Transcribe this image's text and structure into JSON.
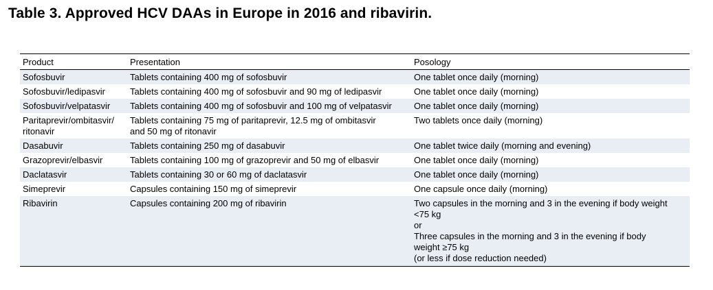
{
  "title": "Table 3. Approved HCV DAAs in Europe in 2016 and ribavirin.",
  "table": {
    "headers": [
      "Product",
      "Presentation",
      "Posology"
    ],
    "rows": [
      {
        "product": [
          "Sofosbuvir"
        ],
        "presentation": [
          "Tablets containing 400 mg of sofosbuvir"
        ],
        "posology": [
          "One tablet once daily (morning)"
        ]
      },
      {
        "product": [
          "Sofosbuvir/ledipasvir"
        ],
        "presentation": [
          "Tablets containing 400 mg of sofosbuvir and 90 mg of ledipasvir"
        ],
        "posology": [
          "One tablet once daily (morning)"
        ]
      },
      {
        "product": [
          "Sofosbuvir/velpatasvir"
        ],
        "presentation": [
          "Tablets containing 400 mg of sofosbuvir and 100 mg of velpatasvir"
        ],
        "posology": [
          "One tablet once daily (morning)"
        ]
      },
      {
        "product": [
          "Paritaprevir/ombitasvir/",
          "ritonavir"
        ],
        "presentation": [
          "Tablets containing 75 mg of paritaprevir, 12.5 mg of ombitasvir",
          "and 50 mg of ritonavir"
        ],
        "posology": [
          "Two tablets once daily (morning)"
        ]
      },
      {
        "product": [
          "Dasabuvir"
        ],
        "presentation": [
          "Tablets containing 250 mg of dasabuvir"
        ],
        "posology": [
          "One tablet twice daily (morning and evening)"
        ]
      },
      {
        "product": [
          "Grazoprevir/elbasvir"
        ],
        "presentation": [
          "Tablets containing 100 mg of grazoprevir and 50 mg of elbasvir"
        ],
        "posology": [
          "One tablet once daily (morning)"
        ]
      },
      {
        "product": [
          "Daclatasvir"
        ],
        "presentation": [
          "Tablets containing 30 or 60 mg of daclatasvir"
        ],
        "posology": [
          "One tablet once daily (morning)"
        ]
      },
      {
        "product": [
          "Simeprevir"
        ],
        "presentation": [
          "Capsules containing 150 mg of simeprevir"
        ],
        "posology": [
          "One capsule once daily (morning)"
        ]
      },
      {
        "product": [
          "Ribavirin"
        ],
        "presentation": [
          "Capsules containing 200 mg of ribavirin"
        ],
        "posology": [
          "Two capsules in the morning and 3 in the evening if body weight",
          "<75 kg",
          "or",
          "Three capsules in the morning and 3 in the evening if body",
          "weight ≥75 kg",
          "(or less if dose reduction needed)"
        ]
      }
    ]
  }
}
